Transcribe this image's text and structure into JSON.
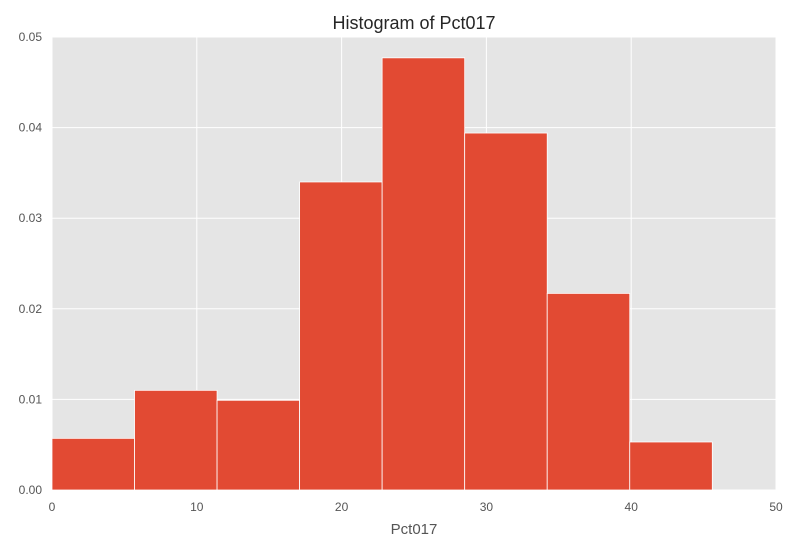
{
  "chart_data": {
    "type": "bar",
    "title": "Histogram of Pct017",
    "xlabel": "Pct017",
    "ylabel": "",
    "xlim": [
      0,
      50
    ],
    "ylim": [
      0,
      0.05
    ],
    "x_ticks": [
      0,
      10,
      20,
      30,
      40,
      50
    ],
    "x_tick_labels": [
      "0",
      "10",
      "20",
      "30",
      "40",
      "50"
    ],
    "y_ticks": [
      0,
      0.01,
      0.02,
      0.03,
      0.04,
      0.05
    ],
    "y_tick_labels": [
      "0.00",
      "0.01",
      "0.02",
      "0.03",
      "0.04",
      "0.05"
    ],
    "grid": true,
    "bins": [
      {
        "x0": 0.0,
        "x1": 5.7,
        "value": 0.0057
      },
      {
        "x0": 5.7,
        "x1": 11.4,
        "value": 0.011
      },
      {
        "x0": 11.4,
        "x1": 17.1,
        "value": 0.0099
      },
      {
        "x0": 17.1,
        "x1": 22.8,
        "value": 0.034
      },
      {
        "x0": 22.8,
        "x1": 28.5,
        "value": 0.0477
      },
      {
        "x0": 28.5,
        "x1": 34.2,
        "value": 0.0394
      },
      {
        "x0": 34.2,
        "x1": 39.9,
        "value": 0.0217
      },
      {
        "x0": 39.9,
        "x1": 45.6,
        "value": 0.0053
      }
    ],
    "colors": {
      "bar": "#E24A33",
      "plot_background": "#E5E5E5",
      "grid": "#FFFFFF"
    }
  }
}
